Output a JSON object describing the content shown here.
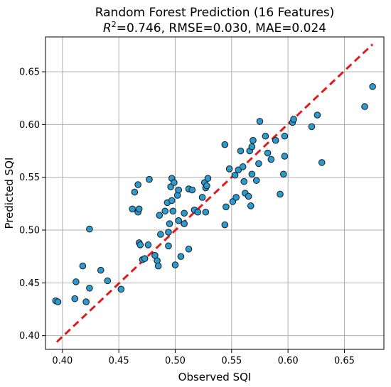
{
  "chart_data": {
    "type": "scatter",
    "title": "Random Forest Prediction (16 Features)",
    "subtitle": {
      "r2_symbol": "R",
      "r2_exponent": "2",
      "metrics_text": "=0.746, RMSE=0.030, MAE=0.024"
    },
    "xlabel": "Observed SQI",
    "ylabel": "Predicted SQI",
    "xlim": [
      0.385,
      0.685
    ],
    "ylim": [
      0.387,
      0.683
    ],
    "xticks": [
      {
        "value": 0.4,
        "label": "0.40"
      },
      {
        "value": 0.45,
        "label": "0.45"
      },
      {
        "value": 0.5,
        "label": "0.50"
      },
      {
        "value": 0.55,
        "label": "0.55"
      },
      {
        "value": 0.6,
        "label": "0.60"
      },
      {
        "value": 0.65,
        "label": "0.65"
      }
    ],
    "yticks": [
      {
        "value": 0.4,
        "label": "0.40"
      },
      {
        "value": 0.45,
        "label": "0.45"
      },
      {
        "value": 0.5,
        "label": "0.50"
      },
      {
        "value": 0.55,
        "label": "0.55"
      },
      {
        "value": 0.6,
        "label": "0.60"
      },
      {
        "value": 0.65,
        "label": "0.65"
      }
    ],
    "grid": true,
    "point_color": "#2a9bd0",
    "line_color": "#e11b1b",
    "fit_line": {
      "x": [
        0.395,
        0.675
      ],
      "y": [
        0.394,
        0.676
      ]
    },
    "points": [
      {
        "x": 0.394,
        "y": 0.433
      },
      {
        "x": 0.396,
        "y": 0.432
      },
      {
        "x": 0.411,
        "y": 0.435
      },
      {
        "x": 0.412,
        "y": 0.451
      },
      {
        "x": 0.418,
        "y": 0.466
      },
      {
        "x": 0.421,
        "y": 0.432
      },
      {
        "x": 0.424,
        "y": 0.445
      },
      {
        "x": 0.424,
        "y": 0.501
      },
      {
        "x": 0.434,
        "y": 0.462
      },
      {
        "x": 0.44,
        "y": 0.452
      },
      {
        "x": 0.452,
        "y": 0.444
      },
      {
        "x": 0.462,
        "y": 0.52
      },
      {
        "x": 0.464,
        "y": 0.536
      },
      {
        "x": 0.467,
        "y": 0.517
      },
      {
        "x": 0.467,
        "y": 0.543
      },
      {
        "x": 0.468,
        "y": 0.52
      },
      {
        "x": 0.468,
        "y": 0.488
      },
      {
        "x": 0.469,
        "y": 0.486
      },
      {
        "x": 0.471,
        "y": 0.472
      },
      {
        "x": 0.473,
        "y": 0.473
      },
      {
        "x": 0.476,
        "y": 0.486
      },
      {
        "x": 0.477,
        "y": 0.548
      },
      {
        "x": 0.482,
        "y": 0.476
      },
      {
        "x": 0.484,
        "y": 0.471
      },
      {
        "x": 0.485,
        "y": 0.466
      },
      {
        "x": 0.486,
        "y": 0.514
      },
      {
        "x": 0.487,
        "y": 0.496
      },
      {
        "x": 0.491,
        "y": 0.518
      },
      {
        "x": 0.493,
        "y": 0.526
      },
      {
        "x": 0.494,
        "y": 0.498
      },
      {
        "x": 0.494,
        "y": 0.485
      },
      {
        "x": 0.495,
        "y": 0.506
      },
      {
        "x": 0.496,
        "y": 0.541
      },
      {
        "x": 0.497,
        "y": 0.549
      },
      {
        "x": 0.497,
        "y": 0.528
      },
      {
        "x": 0.498,
        "y": 0.518
      },
      {
        "x": 0.499,
        "y": 0.545
      },
      {
        "x": 0.5,
        "y": 0.467
      },
      {
        "x": 0.502,
        "y": 0.533
      },
      {
        "x": 0.503,
        "y": 0.538
      },
      {
        "x": 0.503,
        "y": 0.509
      },
      {
        "x": 0.505,
        "y": 0.475
      },
      {
        "x": 0.508,
        "y": 0.506
      },
      {
        "x": 0.508,
        "y": 0.516
      },
      {
        "x": 0.512,
        "y": 0.482
      },
      {
        "x": 0.512,
        "y": 0.539
      },
      {
        "x": 0.515,
        "y": 0.538
      },
      {
        "x": 0.517,
        "y": 0.519
      },
      {
        "x": 0.52,
        "y": 0.517
      },
      {
        "x": 0.524,
        "y": 0.531
      },
      {
        "x": 0.526,
        "y": 0.545
      },
      {
        "x": 0.527,
        "y": 0.517
      },
      {
        "x": 0.527,
        "y": 0.54
      },
      {
        "x": 0.528,
        "y": 0.542
      },
      {
        "x": 0.529,
        "y": 0.549
      },
      {
        "x": 0.544,
        "y": 0.505
      },
      {
        "x": 0.544,
        "y": 0.581
      },
      {
        "x": 0.545,
        "y": 0.522
      },
      {
        "x": 0.548,
        "y": 0.558
      },
      {
        "x": 0.551,
        "y": 0.527
      },
      {
        "x": 0.553,
        "y": 0.552
      },
      {
        "x": 0.554,
        "y": 0.531
      },
      {
        "x": 0.556,
        "y": 0.557
      },
      {
        "x": 0.558,
        "y": 0.575
      },
      {
        "x": 0.56,
        "y": 0.56
      },
      {
        "x": 0.561,
        "y": 0.546
      },
      {
        "x": 0.562,
        "y": 0.535
      },
      {
        "x": 0.565,
        "y": 0.532
      },
      {
        "x": 0.566,
        "y": 0.575
      },
      {
        "x": 0.567,
        "y": 0.523
      },
      {
        "x": 0.568,
        "y": 0.553
      },
      {
        "x": 0.568,
        "y": 0.579
      },
      {
        "x": 0.569,
        "y": 0.585
      },
      {
        "x": 0.572,
        "y": 0.547
      },
      {
        "x": 0.574,
        "y": 0.563
      },
      {
        "x": 0.575,
        "y": 0.603
      },
      {
        "x": 0.58,
        "y": 0.589
      },
      {
        "x": 0.582,
        "y": 0.573
      },
      {
        "x": 0.585,
        "y": 0.567
      },
      {
        "x": 0.589,
        "y": 0.585
      },
      {
        "x": 0.593,
        "y": 0.534
      },
      {
        "x": 0.596,
        "y": 0.553
      },
      {
        "x": 0.597,
        "y": 0.57
      },
      {
        "x": 0.597,
        "y": 0.589
      },
      {
        "x": 0.604,
        "y": 0.602
      },
      {
        "x": 0.605,
        "y": 0.605
      },
      {
        "x": 0.621,
        "y": 0.598
      },
      {
        "x": 0.626,
        "y": 0.609
      },
      {
        "x": 0.63,
        "y": 0.564
      },
      {
        "x": 0.668,
        "y": 0.617
      },
      {
        "x": 0.675,
        "y": 0.636
      }
    ]
  }
}
